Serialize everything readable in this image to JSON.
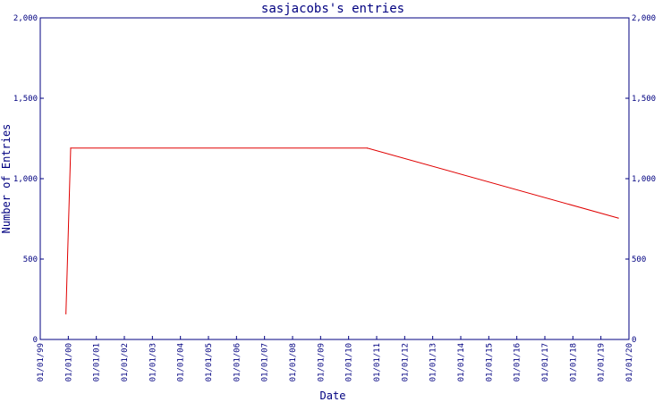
{
  "chart_data": {
    "type": "line",
    "title": "sasjacobs's entries",
    "xlabel": "Date",
    "ylabel": "Number of Entries",
    "x_tick_labels": [
      "01/01/99",
      "01/01/00",
      "01/01/01",
      "01/01/02",
      "01/01/03",
      "01/01/04",
      "01/01/05",
      "01/01/06",
      "01/01/07",
      "01/01/08",
      "01/01/09",
      "01/01/10",
      "01/01/11",
      "01/01/12",
      "01/01/13",
      "01/01/14",
      "01/01/15",
      "01/01/16",
      "01/01/17",
      "01/01/18",
      "01/01/19",
      "01/01/20"
    ],
    "y_ticks": [
      0,
      500,
      1000,
      1500,
      2000
    ],
    "y_tick_labels": [
      "0",
      "500",
      "1,000",
      "1,500",
      "2,000"
    ],
    "xlim": [
      "1999-01-01",
      "2020-01-01"
    ],
    "ylim": [
      0,
      2000
    ],
    "grid": false,
    "series": [
      {
        "color": "#e00000",
        "points": [
          {
            "x": "1999-12-01",
            "y": 160
          },
          {
            "x": "2000-02-01",
            "y": 1190
          },
          {
            "x": "2010-09-01",
            "y": 1190
          },
          {
            "x": "2019-08-15",
            "y": 755
          }
        ]
      }
    ],
    "colors": {
      "axis": "#000080",
      "text": "#000080",
      "line": "#e00000",
      "background": "#ffffff"
    }
  }
}
